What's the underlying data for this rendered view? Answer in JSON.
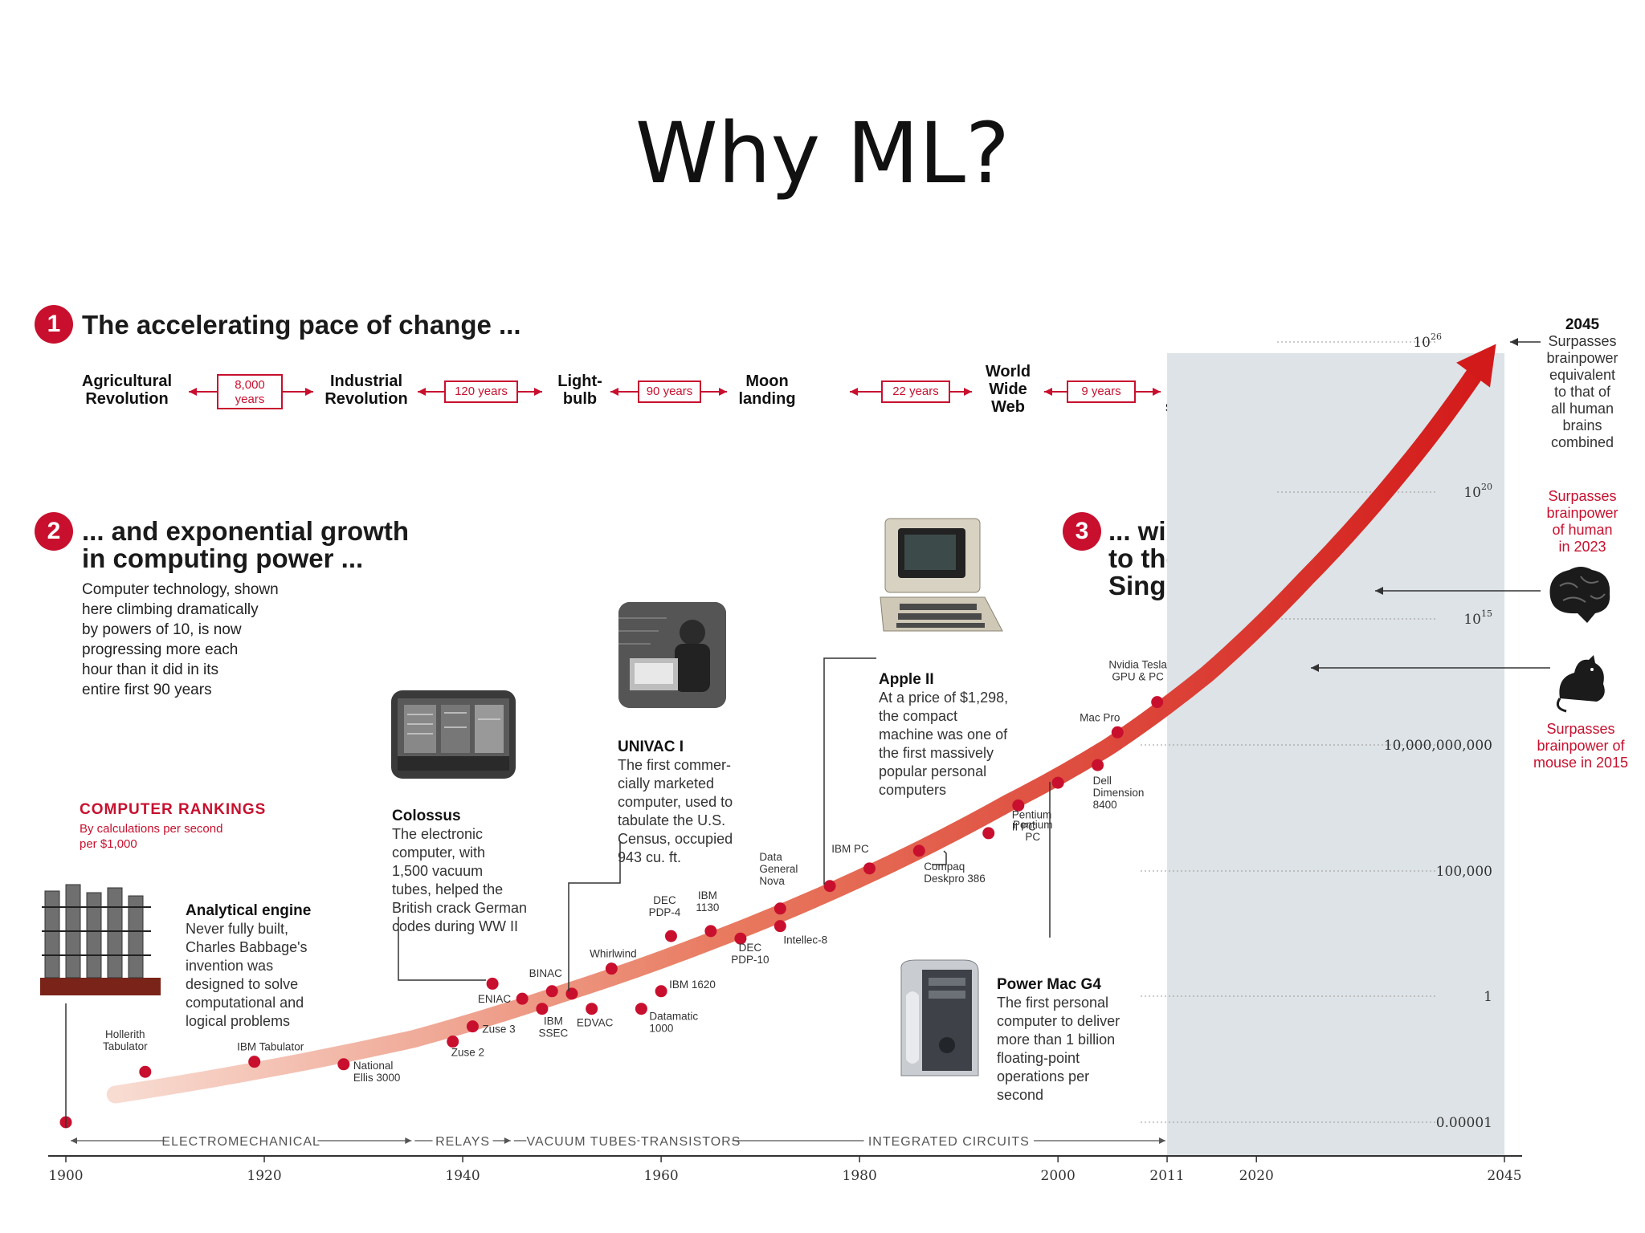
{
  "slide_title": "Why ML?",
  "section1": {
    "number": "1",
    "heading": "The accelerating pace of change ..."
  },
  "timeline": {
    "eras": [
      "Agricultural\nRevolution",
      "Industrial\nRevolution",
      "Light-\nbulb",
      "Moon\nlanding",
      "World\nWide\nWeb",
      "Human\ngenome\nsequenced"
    ],
    "gaps": [
      "8,000\nyears",
      "120 years",
      "90 years",
      "22 years",
      "9 years"
    ]
  },
  "section2": {
    "number": "2",
    "heading": "... and exponential growth\nin computing power ...",
    "body": "Computer technology, shown\nhere climbing dramatically\nby powers of 10, is now\nprogressing more each\nhour than it did in its\nentire first 90 years"
  },
  "section3": {
    "number": "3",
    "heading": "... will lead\nto the\nSingularity"
  },
  "rankings": {
    "heading": "COMPUTER RANKINGS",
    "subheading": "By calculations per second\nper $1,000"
  },
  "callouts": {
    "analytical": {
      "title": "Analytical engine",
      "body": "Never fully built,\nCharles Babbage's\ninvention was\ndesigned to solve\ncomputational and\nlogical problems"
    },
    "colossus": {
      "title": "Colossus",
      "body": "The electronic\ncomputer, with\n1,500 vacuum\ntubes, helped the\nBritish crack German\ncodes during WW II"
    },
    "univac": {
      "title": "UNIVAC I",
      "body": "The first commer-\ncially marketed\ncomputer, used to\ntabulate the U.S.\nCensus, occupied\n943 cu. ft."
    },
    "apple": {
      "title": "Apple II",
      "body": "At a price of $1,298,\nthe compact\nmachine was one of\nthe first massively\npopular personal\ncomputers"
    },
    "powermac": {
      "title": "Power Mac G4",
      "body": "The first personal\ncomputer to deliver\nmore than 1 billion\nfloating-point\noperations per\nsecond"
    }
  },
  "annotations": {
    "y2045": {
      "year": "2045",
      "text": "Surpasses\nbrainpower\nequivalent\nto that of\nall human\nbrains\ncombined"
    },
    "human": "Surpasses\nbrainpower\nof human\nin 2023",
    "mouse": "Surpasses\nbrainpower of\nmouse in 2015"
  },
  "chart_data": {
    "type": "scatter",
    "title": "",
    "xlabel": "",
    "ylabel": "",
    "y_scale": "log",
    "xlim": [
      1900,
      2045
    ],
    "ylim_exponent": [
      -5,
      26
    ],
    "x_ticks": [
      {
        "value": 1900,
        "label": "1900"
      },
      {
        "value": 1920,
        "label": "1920"
      },
      {
        "value": 1940,
        "label": "1940"
      },
      {
        "value": 1960,
        "label": "1960"
      },
      {
        "value": 1980,
        "label": "1980"
      },
      {
        "value": 2000,
        "label": "2000"
      },
      {
        "value": 2011,
        "label": "2011"
      },
      {
        "value": 2020,
        "label": "2020"
      },
      {
        "value": 2045,
        "label": "2045"
      }
    ],
    "y_ticks": [
      {
        "exp": -5,
        "label": "0.00001"
      },
      {
        "exp": 0,
        "label": "1"
      },
      {
        "exp": 5,
        "label": "100,000"
      },
      {
        "exp": 10,
        "label": "10,000,000,000"
      },
      {
        "exp": 15,
        "label": "10"
      },
      {
        "exp": 20,
        "label": "10"
      },
      {
        "exp": 26,
        "label": "10"
      }
    ],
    "y_tick_superscripts": {
      "15": "15",
      "20": "20",
      "26": "26"
    },
    "points": [
      {
        "x": 1900,
        "exp": -5.0,
        "label": ""
      },
      {
        "x": 1908,
        "exp": -3.0,
        "label": "Hollerith\nTabulator"
      },
      {
        "x": 1919,
        "exp": -2.6,
        "label": "IBM Tabulator"
      },
      {
        "x": 1928,
        "exp": -2.7,
        "label": "National\nEllis 3000"
      },
      {
        "x": 1939,
        "exp": -1.8,
        "label": "Zuse 2"
      },
      {
        "x": 1941,
        "exp": -1.2,
        "label": "Zuse 3"
      },
      {
        "x": 1943,
        "exp": 0.5,
        "label": ""
      },
      {
        "x": 1946,
        "exp": -0.1,
        "label": "ENIAC"
      },
      {
        "x": 1948,
        "exp": -0.5,
        "label": "IBM\nSSEC"
      },
      {
        "x": 1949,
        "exp": 0.2,
        "label": "BINAC"
      },
      {
        "x": 1951,
        "exp": 0.1,
        "label": ""
      },
      {
        "x": 1953,
        "exp": -0.5,
        "label": "EDVAC"
      },
      {
        "x": 1955,
        "exp": 1.1,
        "label": "Whirlwind"
      },
      {
        "x": 1958,
        "exp": -0.5,
        "label": "Datamatic\n1000"
      },
      {
        "x": 1960,
        "exp": 0.2,
        "label": "IBM 1620"
      },
      {
        "x": 1961,
        "exp": 2.4,
        "label": "DEC\nPDP-4"
      },
      {
        "x": 1965,
        "exp": 2.6,
        "label": "IBM\n1130"
      },
      {
        "x": 1968,
        "exp": 2.3,
        "label": "DEC\nPDP-10"
      },
      {
        "x": 1972,
        "exp": 2.8,
        "label": "Intellec-8"
      },
      {
        "x": 1972,
        "exp": 3.5,
        "label": "Data\nGeneral\nNova"
      },
      {
        "x": 1977,
        "exp": 4.4,
        "label": ""
      },
      {
        "x": 1981,
        "exp": 5.1,
        "label": "IBM PC"
      },
      {
        "x": 1986,
        "exp": 5.8,
        "label": "Compaq\nDeskpro 386"
      },
      {
        "x": 1993,
        "exp": 6.5,
        "label": "Pentium\nPC"
      },
      {
        "x": 1996,
        "exp": 7.6,
        "label": "Pentium\nII PC"
      },
      {
        "x": 2000,
        "exp": 8.5,
        "label": ""
      },
      {
        "x": 2004,
        "exp": 9.2,
        "label": "Dell\nDimension\n8400"
      },
      {
        "x": 2006,
        "exp": 10.5,
        "label": "Mac Pro"
      },
      {
        "x": 2010,
        "exp": 11.7,
        "label": "Nvidia Tesla\nGPU & PC"
      }
    ],
    "curve": [
      [
        1905,
        -3.9
      ],
      [
        1920,
        -2.9
      ],
      [
        1935,
        -1.7
      ],
      [
        1950,
        0.1
      ],
      [
        1965,
        2.2
      ],
      [
        1980,
        4.7
      ],
      [
        1995,
        7.7
      ],
      [
        2005,
        9.9
      ],
      [
        2015,
        12.8
      ],
      [
        2025,
        16.6
      ],
      [
        2035,
        21.0
      ],
      [
        2043,
        25.3
      ]
    ],
    "projection_start": 2011,
    "eras": [
      {
        "from": 1900,
        "to": 1935,
        "label": "ELECTROMECHANICAL"
      },
      {
        "from": 1935,
        "to": 1945,
        "label": "RELAYS"
      },
      {
        "from": 1945,
        "to": 1959,
        "label": "VACUUM TUBES"
      },
      {
        "from": 1959,
        "to": 1967,
        "label": "TRANSISTORS"
      },
      {
        "from": 1967,
        "to": 2011,
        "label": "INTEGRATED CIRCUITS"
      }
    ]
  }
}
